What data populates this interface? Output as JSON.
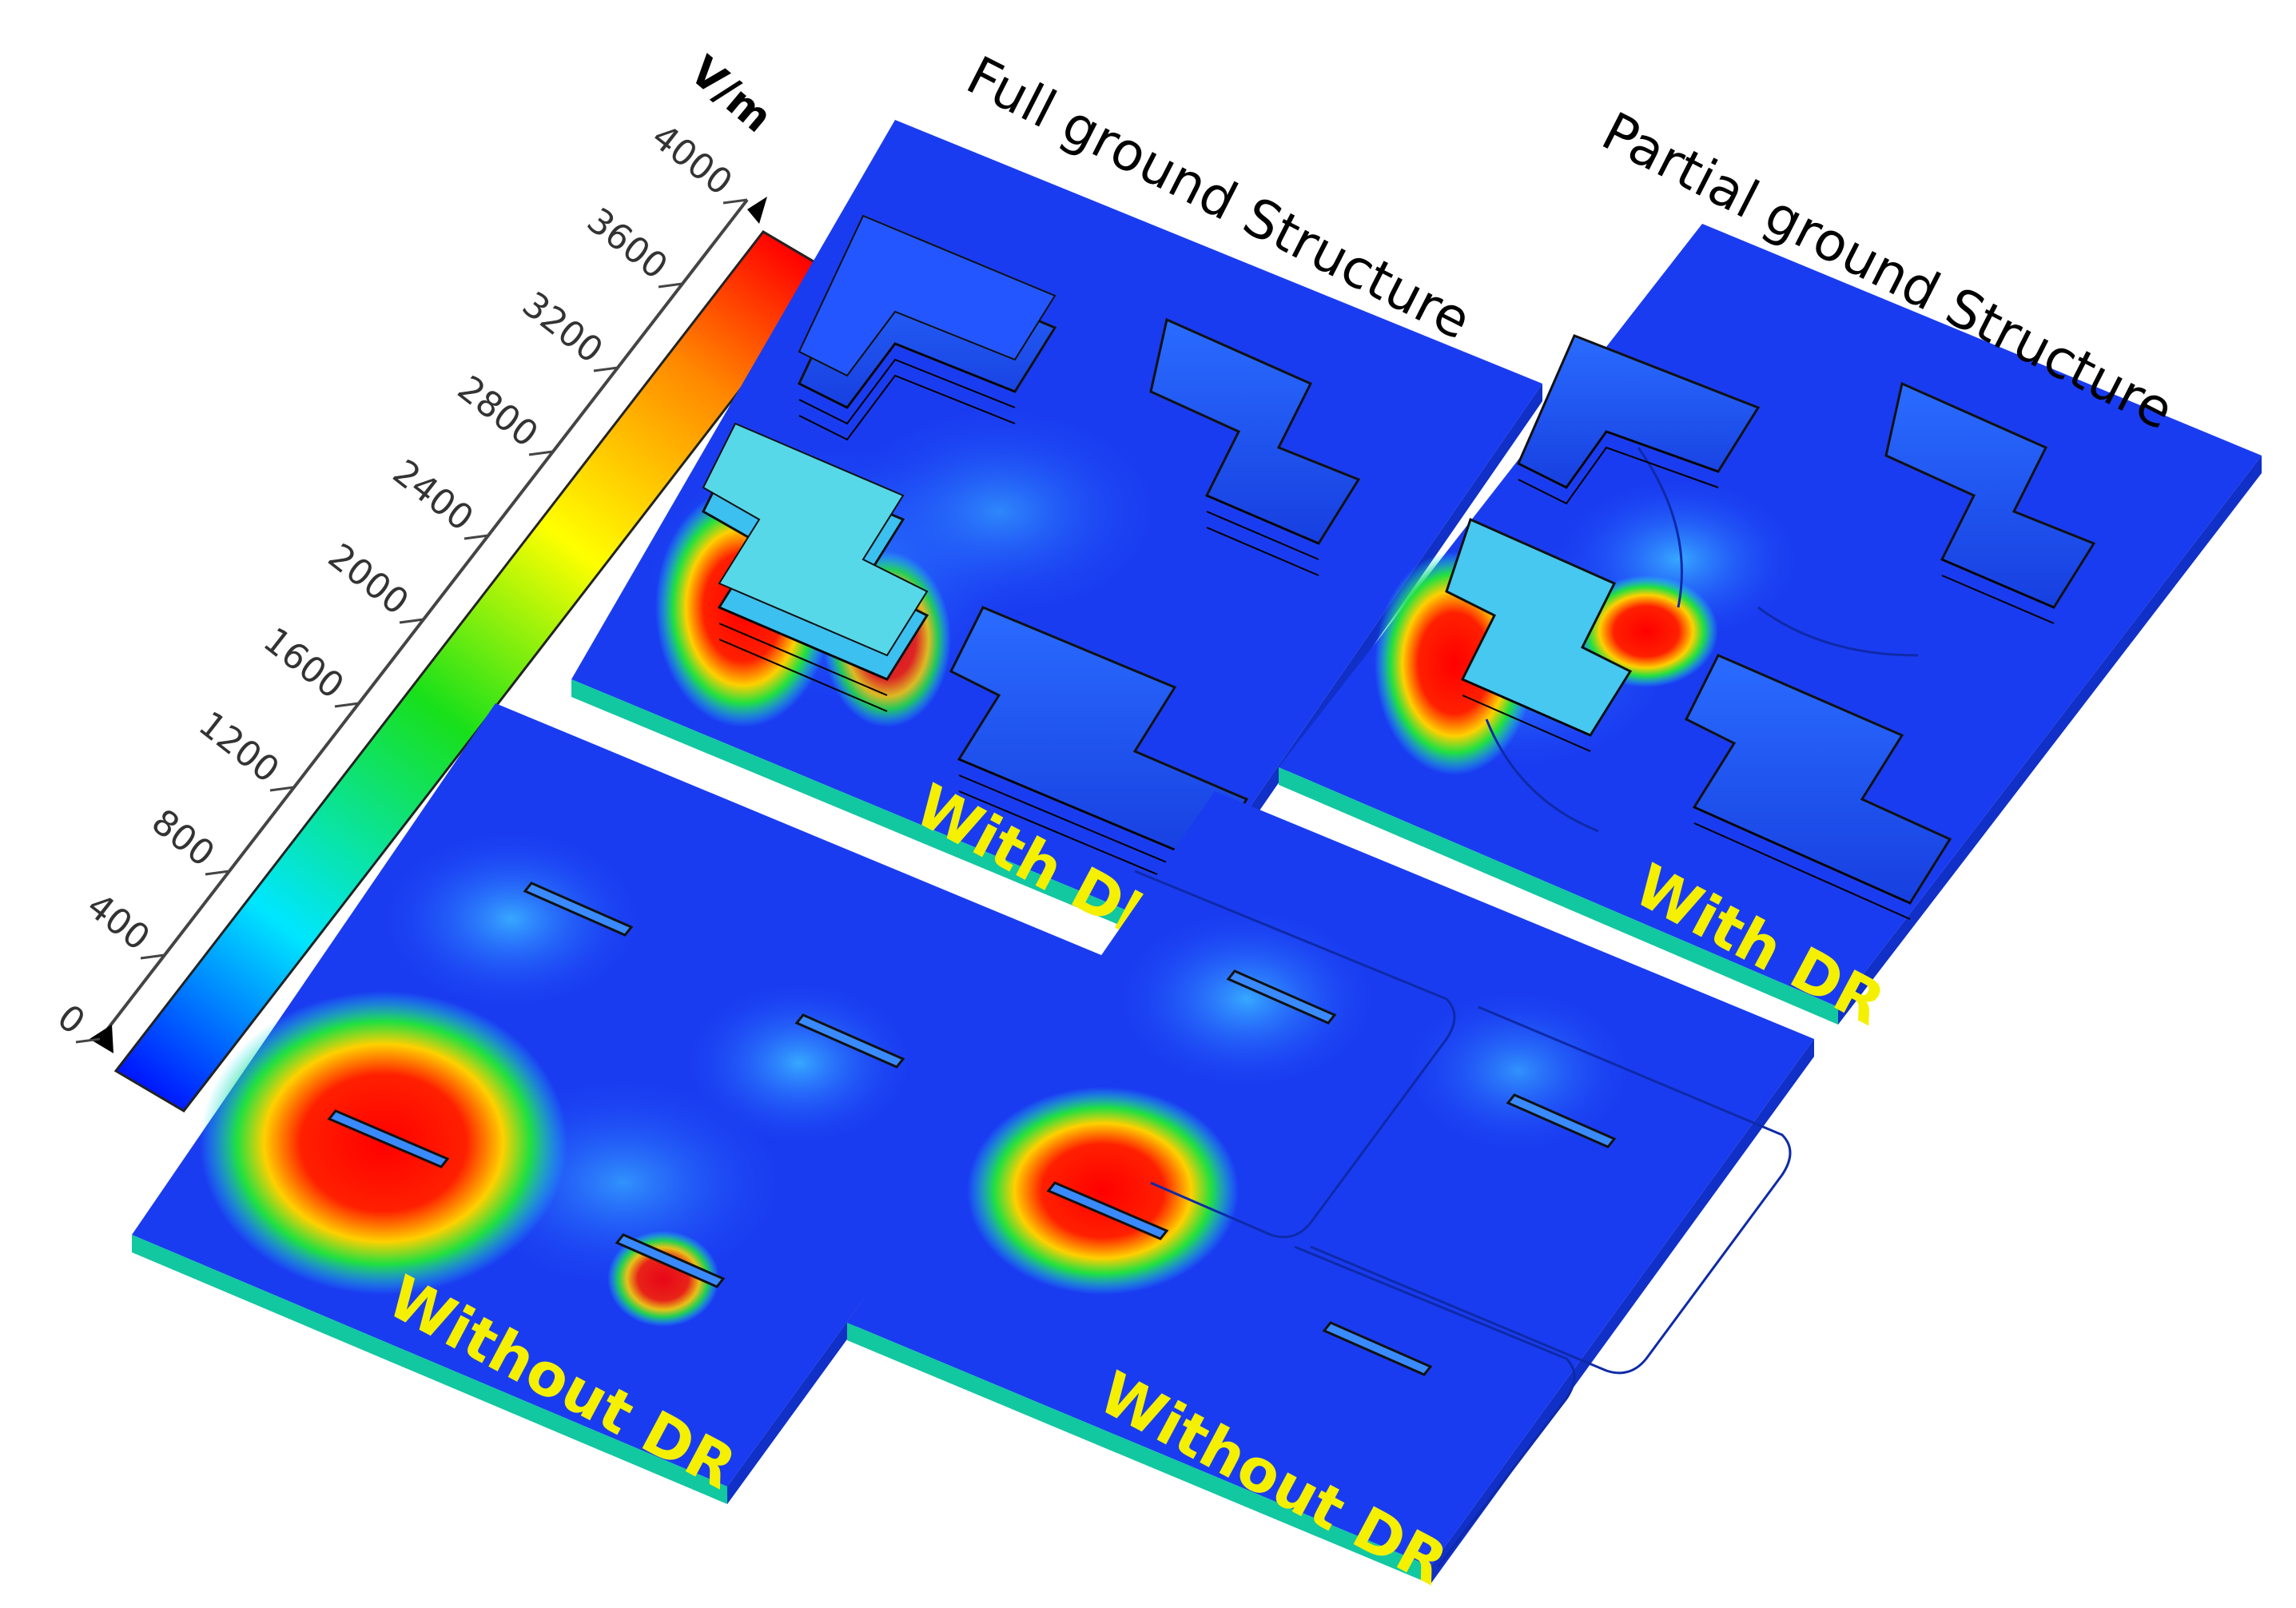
{
  "colorbar": {
    "unit": "V/m",
    "ticks": [
      "0",
      "400",
      "800",
      "1200",
      "1600",
      "2000",
      "2400",
      "2800",
      "3200",
      "3600",
      "4000"
    ],
    "range": [
      0,
      4000
    ],
    "colors": [
      "#0018ff",
      "#00e6ff",
      "#18e01a",
      "#ffff00",
      "#ff8800",
      "#ff0000"
    ]
  },
  "titles": {
    "full_ground": "Full ground Structure",
    "partial_ground": "Partial ground Structure"
  },
  "panels": {
    "full_with": "With DR",
    "full_without": "Without DR",
    "partial_with": "With DR",
    "partial_without": "Without DR"
  }
}
